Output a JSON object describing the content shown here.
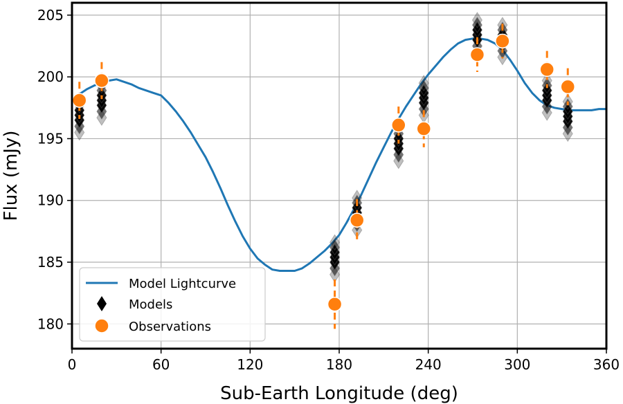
{
  "chart_data": {
    "type": "scatter",
    "title": "",
    "xlabel": "Sub-Earth Longitude (deg)",
    "ylabel": "Flux (mJy)",
    "xlim": [
      0,
      360
    ],
    "ylim": [
      178,
      206
    ],
    "xticks": [
      0,
      60,
      120,
      180,
      240,
      300,
      360
    ],
    "yticks": [
      180,
      185,
      190,
      195,
      200,
      205
    ],
    "grid": true,
    "legend_position": "lower-left",
    "legend": [
      "Model Lightcurve",
      "Models",
      "Observations"
    ],
    "colors": {
      "model": "#1f77b4",
      "obs": "#ff7f0e",
      "models": "#000000",
      "grid": "#b0b0b0"
    },
    "series": [
      {
        "name": "Model Lightcurve",
        "kind": "line",
        "x": [
          0,
          5,
          10,
          15,
          20,
          25,
          30,
          35,
          40,
          45,
          50,
          55,
          60,
          65,
          70,
          75,
          80,
          85,
          90,
          95,
          100,
          105,
          110,
          115,
          120,
          125,
          130,
          135,
          140,
          145,
          150,
          155,
          160,
          165,
          170,
          175,
          180,
          185,
          190,
          195,
          200,
          205,
          210,
          215,
          220,
          225,
          230,
          235,
          240,
          245,
          250,
          255,
          260,
          265,
          270,
          275,
          280,
          285,
          290,
          295,
          300,
          305,
          310,
          315,
          320,
          325,
          330,
          335,
          340,
          345,
          350,
          355,
          360
        ],
        "y": [
          198.1,
          198.6,
          199.0,
          199.3,
          199.5,
          199.7,
          199.8,
          199.6,
          199.4,
          199.1,
          198.9,
          198.7,
          198.5,
          197.9,
          197.2,
          196.4,
          195.5,
          194.5,
          193.5,
          192.3,
          191.0,
          189.6,
          188.3,
          187.1,
          186.1,
          185.3,
          184.8,
          184.4,
          184.3,
          184.3,
          184.3,
          184.5,
          184.9,
          185.4,
          185.9,
          186.5,
          187.2,
          188.2,
          189.3,
          190.5,
          191.8,
          193.1,
          194.3,
          195.5,
          196.6,
          197.6,
          198.5,
          199.4,
          200.2,
          200.9,
          201.6,
          202.2,
          202.7,
          203.0,
          203.1,
          203.1,
          203.0,
          202.7,
          202.2,
          201.4,
          200.5,
          199.5,
          198.7,
          198.1,
          197.7,
          197.5,
          197.4,
          197.3,
          197.3,
          197.3,
          197.3,
          197.4,
          197.4
        ]
      },
      {
        "name": "Models",
        "kind": "marker",
        "x": [
          5,
          20,
          177,
          192,
          220,
          237,
          273,
          290,
          320,
          334
        ],
        "y": [
          197.1,
          198.3,
          185.6,
          189.2,
          194.8,
          198.5,
          203.6,
          203.2,
          198.7,
          197.0
        ]
      },
      {
        "name": "Observations",
        "kind": "errorbar",
        "x": [
          5,
          20,
          177,
          192,
          220,
          237,
          273,
          290,
          320,
          334
        ],
        "y": [
          198.1,
          199.7,
          181.6,
          188.4,
          196.1,
          195.8,
          201.8,
          202.9,
          200.6,
          199.2
        ],
        "yerr": [
          1.5,
          1.5,
          2.0,
          1.7,
          1.5,
          1.5,
          1.4,
          1.4,
          1.5,
          1.5
        ]
      }
    ]
  }
}
